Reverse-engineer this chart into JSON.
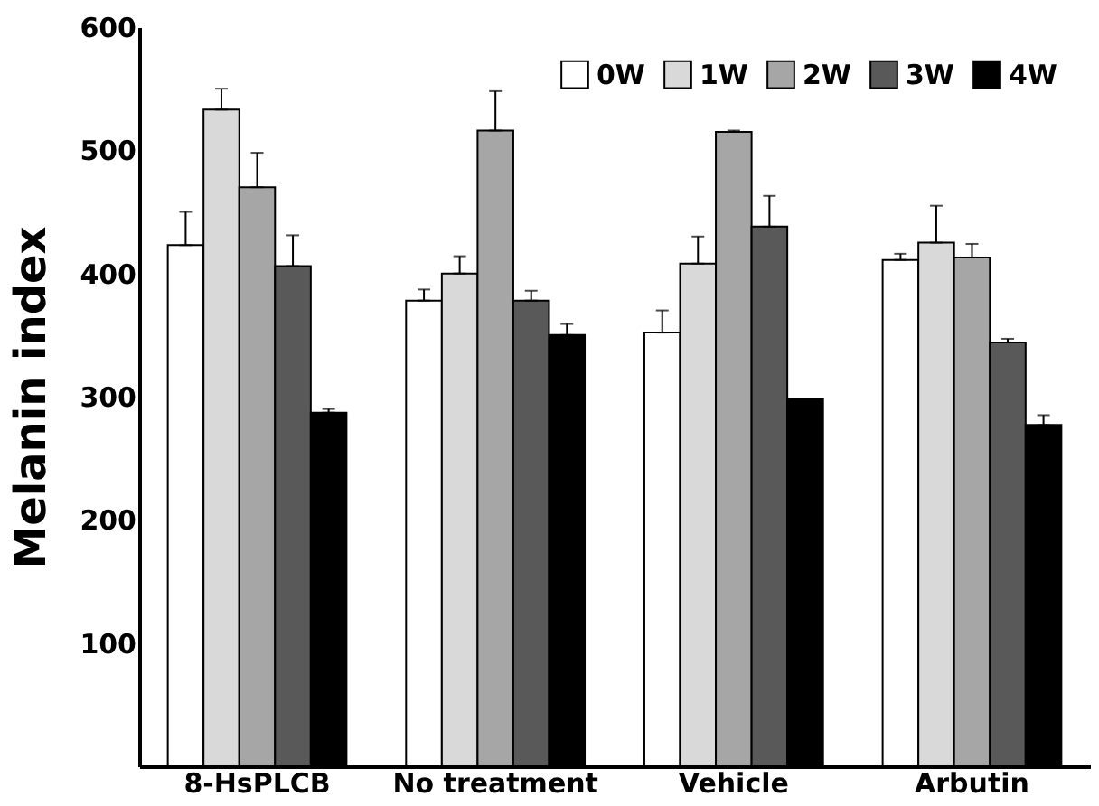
{
  "chart_data": {
    "type": "bar",
    "ylabel": "Melanin index",
    "categories": [
      "8-HsPLCB",
      "No treatment",
      "Vehicle",
      "Arbutin"
    ],
    "series": [
      {
        "name": "0W",
        "color": "#ffffff",
        "values": [
          423,
          378,
          352,
          411
        ],
        "errors": [
          27,
          9,
          18,
          5
        ]
      },
      {
        "name": "1W",
        "color": "#d9d9d9",
        "values": [
          533,
          400,
          408,
          425
        ],
        "errors": [
          17,
          14,
          22,
          30
        ]
      },
      {
        "name": "2W",
        "color": "#a6a6a6",
        "values": [
          470,
          516,
          515,
          413
        ],
        "errors": [
          28,
          32,
          1,
          11
        ]
      },
      {
        "name": "3W",
        "color": "#595959",
        "values": [
          406,
          378,
          438,
          344
        ],
        "errors": [
          25,
          8,
          25,
          3
        ]
      },
      {
        "name": "4W",
        "color": "#000000",
        "values": [
          287,
          350,
          298,
          277
        ],
        "errors": [
          3,
          9,
          null,
          8
        ]
      }
    ],
    "ylim": [
      0,
      600
    ],
    "yticks": [
      100,
      200,
      300,
      400,
      500,
      600
    ],
    "grid": false,
    "legend": "top right"
  }
}
